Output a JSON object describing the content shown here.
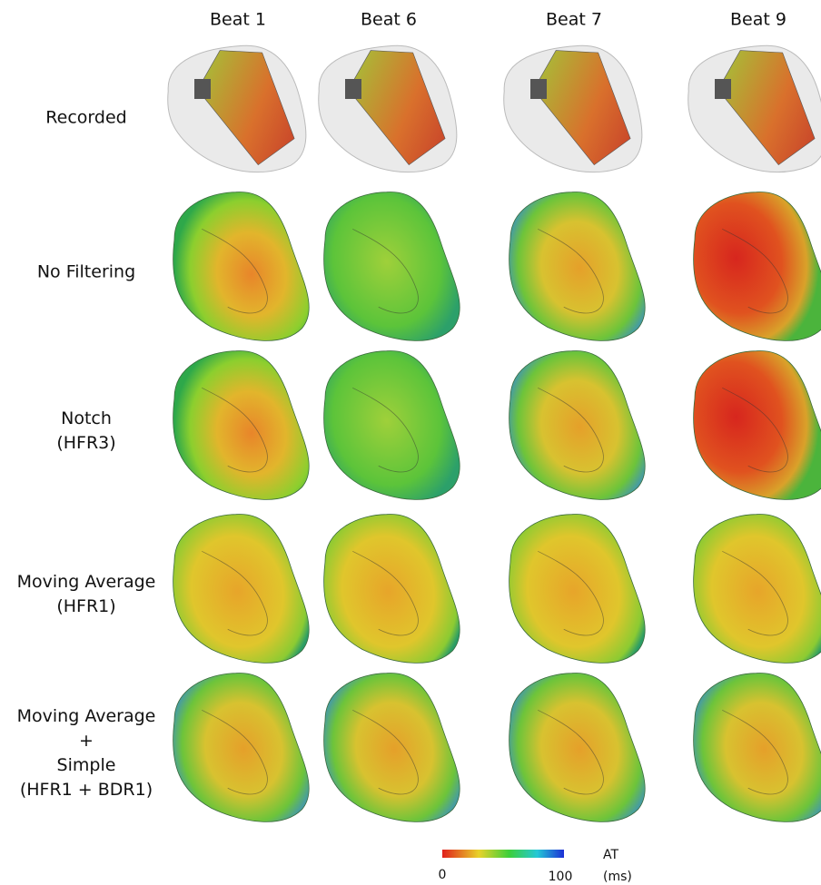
{
  "columns": [
    "Beat 1",
    "Beat 6",
    "Beat 7",
    "Beat 9"
  ],
  "rows": [
    {
      "label": [
        "Recorded"
      ]
    },
    {
      "label": [
        "No Filtering"
      ]
    },
    {
      "label": [
        "Notch",
        "(HFR3)"
      ]
    },
    {
      "label": [
        "Moving Average",
        "(HFR1)"
      ]
    },
    {
      "label": [
        "Moving Average",
        "+",
        "Simple",
        "(HFR1 + BDR1)"
      ]
    }
  ],
  "colorbar": {
    "min": "0",
    "max": "100",
    "title": "AT",
    "unit": "(ms)"
  }
}
